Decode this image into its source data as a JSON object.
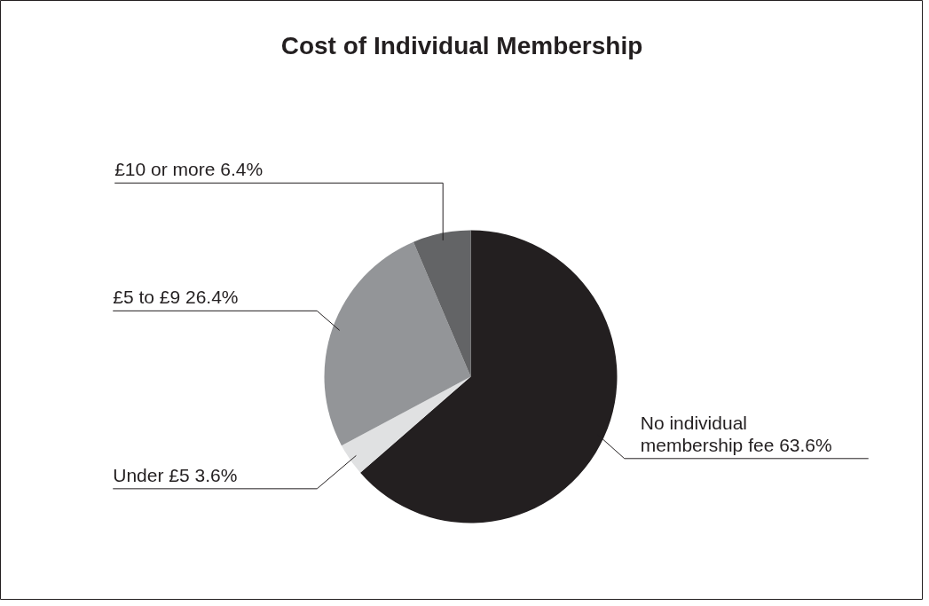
{
  "chart_data": {
    "type": "pie",
    "title": "Cost of Individual Membership",
    "categories": [
      "No individual membership fee",
      "Under £5",
      "£5 to £9",
      "£10 or more"
    ],
    "values": [
      63.6,
      3.6,
      26.4,
      6.4
    ],
    "value_labels": [
      "63.6%",
      "3.6%",
      "26.4%",
      "6.4%"
    ],
    "colors": [
      "#231f20",
      "#e0e1e2",
      "#939598",
      "#636466"
    ]
  }
}
